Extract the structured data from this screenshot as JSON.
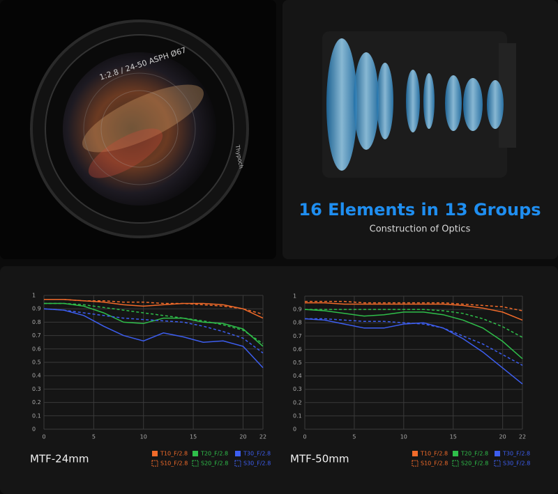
{
  "product": {
    "engraving": "1:2.8 / 24-50 ASPH Ø67",
    "brand": "Thypoch",
    "headline": "16 Elements in 13 Groups",
    "subheadline": "Construction of Optics"
  },
  "chart_data": [
    {
      "type": "line",
      "title": "MTF-24mm",
      "x": [
        0,
        2,
        4,
        6,
        8,
        10,
        12,
        14,
        16,
        18,
        20,
        22
      ],
      "xlim": [
        0,
        22
      ],
      "xticks": [
        0,
        5,
        10,
        15,
        20,
        22
      ],
      "ylim": [
        0,
        1
      ],
      "yticks": [
        0,
        0.1,
        0.2,
        0.3,
        0.4,
        0.5,
        0.6,
        0.7,
        0.8,
        0.9,
        1
      ],
      "grid": true,
      "series": [
        {
          "name": "T10_F/2.8",
          "color": "#f26b2a",
          "style": "solid",
          "values": [
            0.97,
            0.97,
            0.96,
            0.95,
            0.93,
            0.92,
            0.93,
            0.94,
            0.94,
            0.93,
            0.9,
            0.83
          ]
        },
        {
          "name": "S10_F/2.8",
          "color": "#f26b2a",
          "style": "dashed",
          "values": [
            0.97,
            0.97,
            0.96,
            0.96,
            0.95,
            0.95,
            0.94,
            0.94,
            0.93,
            0.92,
            0.9,
            0.86
          ]
        },
        {
          "name": "T20_F/2.8",
          "color": "#2fbf4a",
          "style": "solid",
          "values": [
            0.94,
            0.94,
            0.92,
            0.87,
            0.8,
            0.79,
            0.83,
            0.83,
            0.8,
            0.79,
            0.75,
            0.62
          ]
        },
        {
          "name": "S20_F/2.8",
          "color": "#2fbf4a",
          "style": "dashed",
          "values": [
            0.94,
            0.94,
            0.93,
            0.91,
            0.89,
            0.87,
            0.85,
            0.83,
            0.81,
            0.78,
            0.74,
            0.64
          ]
        },
        {
          "name": "T30_F/2.8",
          "color": "#3d5ef0",
          "style": "solid",
          "values": [
            0.9,
            0.89,
            0.85,
            0.77,
            0.7,
            0.66,
            0.72,
            0.69,
            0.65,
            0.66,
            0.62,
            0.46
          ]
        },
        {
          "name": "S30_F/2.8",
          "color": "#3d5ef0",
          "style": "dashed",
          "values": [
            0.9,
            0.89,
            0.87,
            0.85,
            0.83,
            0.82,
            0.81,
            0.8,
            0.77,
            0.73,
            0.68,
            0.57
          ]
        }
      ]
    },
    {
      "type": "line",
      "title": "MTF-50mm",
      "x": [
        0,
        2,
        4,
        6,
        8,
        10,
        12,
        14,
        16,
        18,
        20,
        22
      ],
      "xlim": [
        0,
        22
      ],
      "xticks": [
        0,
        5,
        10,
        15,
        20,
        22
      ],
      "ylim": [
        0,
        1
      ],
      "yticks": [
        0,
        0.1,
        0.2,
        0.3,
        0.4,
        0.5,
        0.6,
        0.7,
        0.8,
        0.9,
        1
      ],
      "grid": true,
      "series": [
        {
          "name": "T10_F/2.8",
          "color": "#f26b2a",
          "style": "solid",
          "values": [
            0.95,
            0.95,
            0.94,
            0.94,
            0.94,
            0.94,
            0.94,
            0.94,
            0.93,
            0.91,
            0.88,
            0.82
          ]
        },
        {
          "name": "S10_F/2.8",
          "color": "#f26b2a",
          "style": "dashed",
          "values": [
            0.96,
            0.96,
            0.96,
            0.95,
            0.95,
            0.95,
            0.95,
            0.95,
            0.94,
            0.93,
            0.92,
            0.89
          ]
        },
        {
          "name": "T20_F/2.8",
          "color": "#2fbf4a",
          "style": "solid",
          "values": [
            0.9,
            0.89,
            0.87,
            0.85,
            0.86,
            0.88,
            0.88,
            0.86,
            0.82,
            0.76,
            0.66,
            0.53
          ]
        },
        {
          "name": "S20_F/2.8",
          "color": "#2fbf4a",
          "style": "dashed",
          "values": [
            0.9,
            0.9,
            0.9,
            0.9,
            0.9,
            0.9,
            0.9,
            0.89,
            0.87,
            0.83,
            0.77,
            0.69
          ]
        },
        {
          "name": "T30_F/2.8",
          "color": "#3d5ef0",
          "style": "solid",
          "values": [
            0.83,
            0.82,
            0.79,
            0.76,
            0.76,
            0.79,
            0.8,
            0.76,
            0.68,
            0.58,
            0.46,
            0.34
          ]
        },
        {
          "name": "S30_F/2.8",
          "color": "#3d5ef0",
          "style": "dashed",
          "values": [
            0.83,
            0.83,
            0.82,
            0.81,
            0.81,
            0.8,
            0.79,
            0.76,
            0.7,
            0.64,
            0.56,
            0.48
          ]
        }
      ]
    }
  ]
}
